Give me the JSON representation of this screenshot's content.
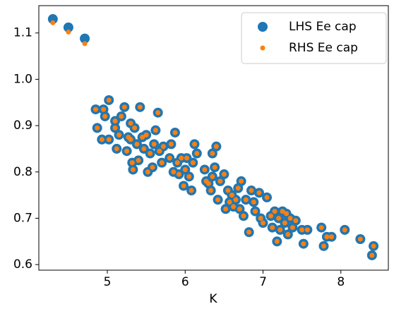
{
  "chart_data": {
    "type": "scatter",
    "xlabel": "K",
    "x": [
      4.3,
      4.5,
      4.71,
      4.85,
      4.87,
      4.93,
      4.95,
      4.97,
      5.02,
      5.02,
      5.1,
      5.1,
      5.12,
      5.15,
      5.18,
      5.22,
      5.25,
      5.27,
      5.3,
      5.3,
      5.32,
      5.33,
      5.35,
      5.38,
      5.4,
      5.42,
      5.45,
      5.47,
      5.5,
      5.52,
      5.55,
      5.58,
      5.6,
      5.62,
      5.65,
      5.67,
      5.7,
      5.72,
      5.8,
      5.82,
      5.85,
      5.87,
      5.9,
      5.92,
      5.95,
      5.98,
      6.0,
      6.02,
      6.05,
      6.08,
      6.1,
      6.12,
      6.15,
      6.25,
      6.27,
      6.3,
      6.33,
      6.35,
      6.35,
      6.38,
      6.4,
      6.42,
      6.45,
      6.5,
      6.52,
      6.55,
      6.57,
      6.6,
      6.62,
      6.65,
      6.68,
      6.7,
      6.72,
      6.75,
      6.78,
      6.82,
      6.85,
      6.88,
      6.9,
      6.95,
      6.97,
      7.0,
      7.05,
      7.1,
      7.12,
      7.15,
      7.18,
      7.2,
      7.22,
      7.25,
      7.28,
      7.3,
      7.32,
      7.35,
      7.38,
      7.42,
      7.5,
      7.52,
      7.57,
      7.75,
      7.78,
      7.82,
      7.88,
      8.05,
      8.25,
      8.4,
      8.42
    ],
    "series": [
      {
        "name": "LHS Ee cap",
        "color": "#1f77b4",
        "values": [
          1.13,
          1.112,
          1.088,
          0.935,
          0.895,
          0.87,
          0.935,
          0.92,
          0.955,
          0.87,
          0.91,
          0.895,
          0.85,
          0.88,
          0.92,
          0.94,
          0.845,
          0.875,
          0.905,
          0.87,
          0.82,
          0.805,
          0.895,
          0.86,
          0.825,
          0.94,
          0.875,
          0.85,
          0.88,
          0.8,
          0.84,
          0.81,
          0.86,
          0.89,
          0.928,
          0.845,
          0.82,
          0.855,
          0.83,
          0.86,
          0.8,
          0.885,
          0.82,
          0.795,
          0.83,
          0.77,
          0.805,
          0.83,
          0.79,
          0.76,
          0.82,
          0.86,
          0.84,
          0.805,
          0.78,
          0.775,
          0.76,
          0.79,
          0.84,
          0.81,
          0.855,
          0.74,
          0.78,
          0.795,
          0.72,
          0.76,
          0.735,
          0.75,
          0.725,
          0.74,
          0.765,
          0.72,
          0.78,
          0.705,
          0.74,
          0.67,
          0.76,
          0.735,
          0.715,
          0.755,
          0.7,
          0.69,
          0.745,
          0.705,
          0.68,
          0.715,
          0.65,
          0.7,
          0.675,
          0.715,
          0.69,
          0.71,
          0.665,
          0.7,
          0.68,
          0.695,
          0.675,
          0.645,
          0.675,
          0.68,
          0.64,
          0.66,
          0.66,
          0.675,
          0.655,
          0.62,
          0.64
        ]
      },
      {
        "name": "RHS Ee cap",
        "color": "#ff7f0e",
        "values": [
          1.122,
          1.102,
          1.077,
          0.935,
          0.895,
          0.87,
          0.935,
          0.92,
          0.955,
          0.87,
          0.91,
          0.895,
          0.85,
          0.88,
          0.92,
          0.94,
          0.845,
          0.875,
          0.905,
          0.87,
          0.82,
          0.805,
          0.895,
          0.86,
          0.825,
          0.94,
          0.875,
          0.85,
          0.88,
          0.8,
          0.84,
          0.81,
          0.86,
          0.89,
          0.928,
          0.845,
          0.82,
          0.855,
          0.83,
          0.86,
          0.8,
          0.885,
          0.82,
          0.795,
          0.83,
          0.77,
          0.805,
          0.83,
          0.79,
          0.76,
          0.82,
          0.86,
          0.84,
          0.805,
          0.78,
          0.775,
          0.76,
          0.79,
          0.84,
          0.81,
          0.855,
          0.74,
          0.78,
          0.795,
          0.72,
          0.76,
          0.735,
          0.75,
          0.725,
          0.74,
          0.765,
          0.72,
          0.78,
          0.705,
          0.74,
          0.67,
          0.76,
          0.735,
          0.715,
          0.755,
          0.7,
          0.69,
          0.745,
          0.705,
          0.68,
          0.715,
          0.65,
          0.7,
          0.675,
          0.715,
          0.69,
          0.71,
          0.665,
          0.7,
          0.68,
          0.695,
          0.675,
          0.645,
          0.675,
          0.68,
          0.64,
          0.66,
          0.66,
          0.675,
          0.655,
          0.62,
          0.64
        ]
      }
    ],
    "xlim": [
      4.12,
      8.61
    ],
    "ylim": [
      0.588,
      1.159
    ],
    "xticks": [
      5,
      6,
      7,
      8
    ],
    "yticks": [
      0.6,
      0.7,
      0.8,
      0.9,
      {
        "value": 1,
        "label": "1.0"
      },
      1.1
    ],
    "legend": "upper right"
  }
}
